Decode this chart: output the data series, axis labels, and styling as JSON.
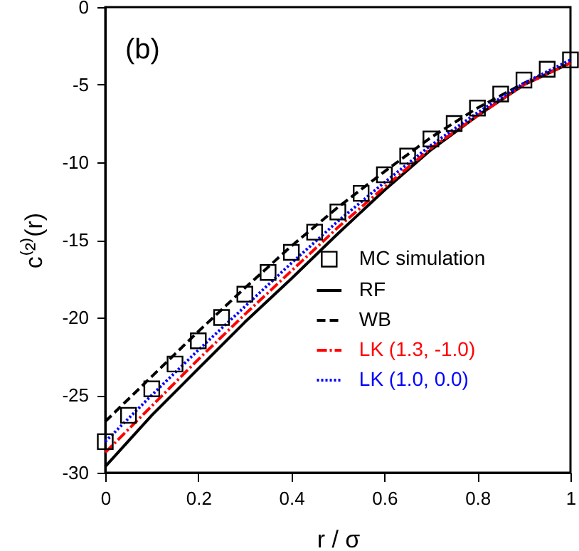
{
  "chart_data": {
    "type": "line",
    "xlabel": "r / σ",
    "ylabel": "c⁽²⁾(r)",
    "annotations": [
      "(b)"
    ],
    "xlim": [
      0,
      1
    ],
    "ylim": [
      -30,
      0
    ],
    "xticks": [
      0,
      0.2,
      0.4,
      0.6,
      0.8,
      1
    ],
    "yticks": [
      -30,
      -25,
      -20,
      -15,
      -10,
      -5,
      0
    ],
    "grid": false,
    "legend": "right",
    "series": [
      {
        "name": "MC simulation",
        "type": "scatter",
        "marker": "square",
        "color": "#000000",
        "x": [
          0,
          0.05,
          0.1,
          0.15,
          0.2,
          0.25,
          0.3,
          0.35,
          0.4,
          0.45,
          0.5,
          0.55,
          0.6,
          0.65,
          0.7,
          0.75,
          0.8,
          0.85,
          0.9,
          0.95,
          1
        ],
        "values": [
          -28,
          -26.3,
          -24.6,
          -23.0,
          -21.5,
          -20.0,
          -18.5,
          -17.1,
          -15.8,
          -14.5,
          -13.2,
          -12.0,
          -10.8,
          -9.6,
          -8.5,
          -7.5,
          -6.5,
          -5.6,
          -4.7,
          -4.0,
          -3.4
        ]
      },
      {
        "name": "RF",
        "color": "#000000",
        "line_style": "solid",
        "x": [
          0,
          0.1,
          0.2,
          0.3,
          0.4,
          0.5,
          0.6,
          0.7,
          0.8,
          0.9,
          1
        ],
        "values": [
          -29.6,
          -26.3,
          -23.3,
          -20.3,
          -17.5,
          -14.6,
          -11.8,
          -9.2,
          -7.0,
          -5.0,
          -3.6
        ]
      },
      {
        "name": "WB",
        "color": "#000000",
        "line_style": "dashed",
        "x": [
          0,
          0.1,
          0.2,
          0.3,
          0.4,
          0.5,
          0.6,
          0.7,
          0.8,
          0.9,
          1
        ],
        "values": [
          -26.7,
          -23.8,
          -20.9,
          -18.1,
          -15.4,
          -12.9,
          -10.6,
          -8.4,
          -6.5,
          -4.9,
          -3.6
        ]
      },
      {
        "name": "LK (1.3, -1.0)",
        "color": "#ff0000",
        "line_style": "dashdot",
        "x": [
          0,
          0.1,
          0.2,
          0.3,
          0.4,
          0.5,
          0.6,
          0.7,
          0.8,
          0.9,
          1
        ],
        "values": [
          -28.7,
          -25.7,
          -22.7,
          -19.8,
          -17.0,
          -14.2,
          -11.6,
          -9.1,
          -7.0,
          -5.0,
          -3.6
        ]
      },
      {
        "name": "LK (1.0, 0.0)",
        "color": "#0000ff",
        "line_style": "dotted",
        "x": [
          0,
          0.1,
          0.2,
          0.3,
          0.4,
          0.5,
          0.6,
          0.7,
          0.8,
          0.9,
          1
        ],
        "values": [
          -28.0,
          -25.0,
          -22.1,
          -19.3,
          -16.5,
          -13.8,
          -11.3,
          -8.9,
          -6.8,
          -4.9,
          -3.4
        ]
      }
    ]
  }
}
